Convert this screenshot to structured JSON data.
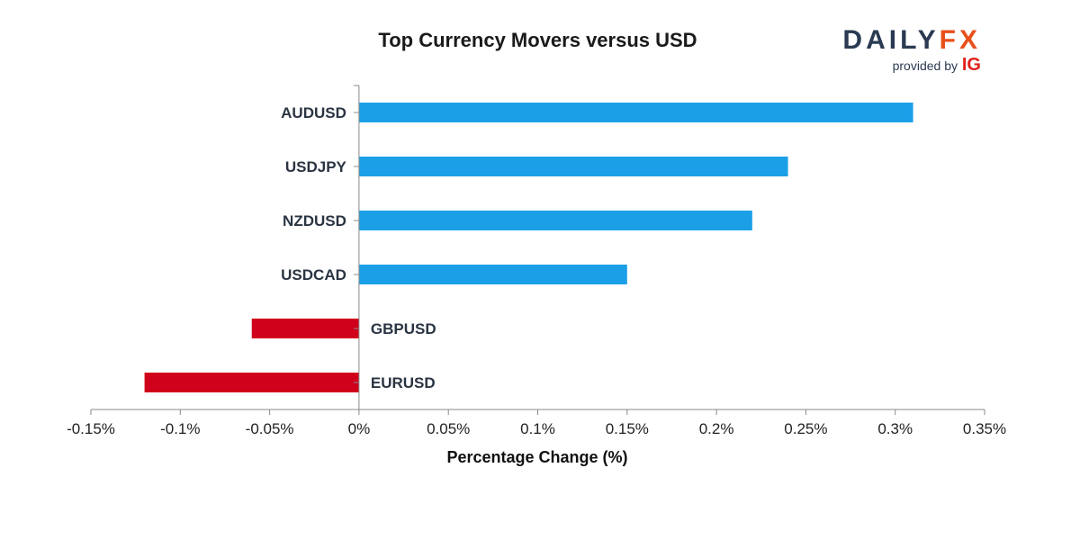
{
  "brand": {
    "name_part1": "DAILY",
    "name_part2": "FX",
    "provided_by": "provided by",
    "provider": "IG"
  },
  "chart_data": {
    "type": "bar",
    "orientation": "horizontal",
    "title": "Top Currency Movers versus USD",
    "xlabel": "Percentage Change (%)",
    "ylabel": "",
    "categories": [
      "AUDUSD",
      "USDJPY",
      "NZDUSD",
      "USDCAD",
      "GBPUSD",
      "EURUSD"
    ],
    "values": [
      0.31,
      0.24,
      0.22,
      0.15,
      -0.06,
      -0.12
    ],
    "xlim": [
      -0.15,
      0.35
    ],
    "xticks": [
      -0.15,
      -0.1,
      -0.05,
      0,
      0.05,
      0.1,
      0.15,
      0.2,
      0.25,
      0.3,
      0.35
    ],
    "xtick_labels": [
      "-0.15%",
      "-0.1%",
      "-0.05%",
      "0%",
      "0.05%",
      "0.1%",
      "0.15%",
      "0.2%",
      "0.25%",
      "0.3%",
      "0.35%"
    ],
    "colors": {
      "positive": "#1b9fe6",
      "negative": "#d0021b"
    },
    "grid": false,
    "legend": "none"
  }
}
